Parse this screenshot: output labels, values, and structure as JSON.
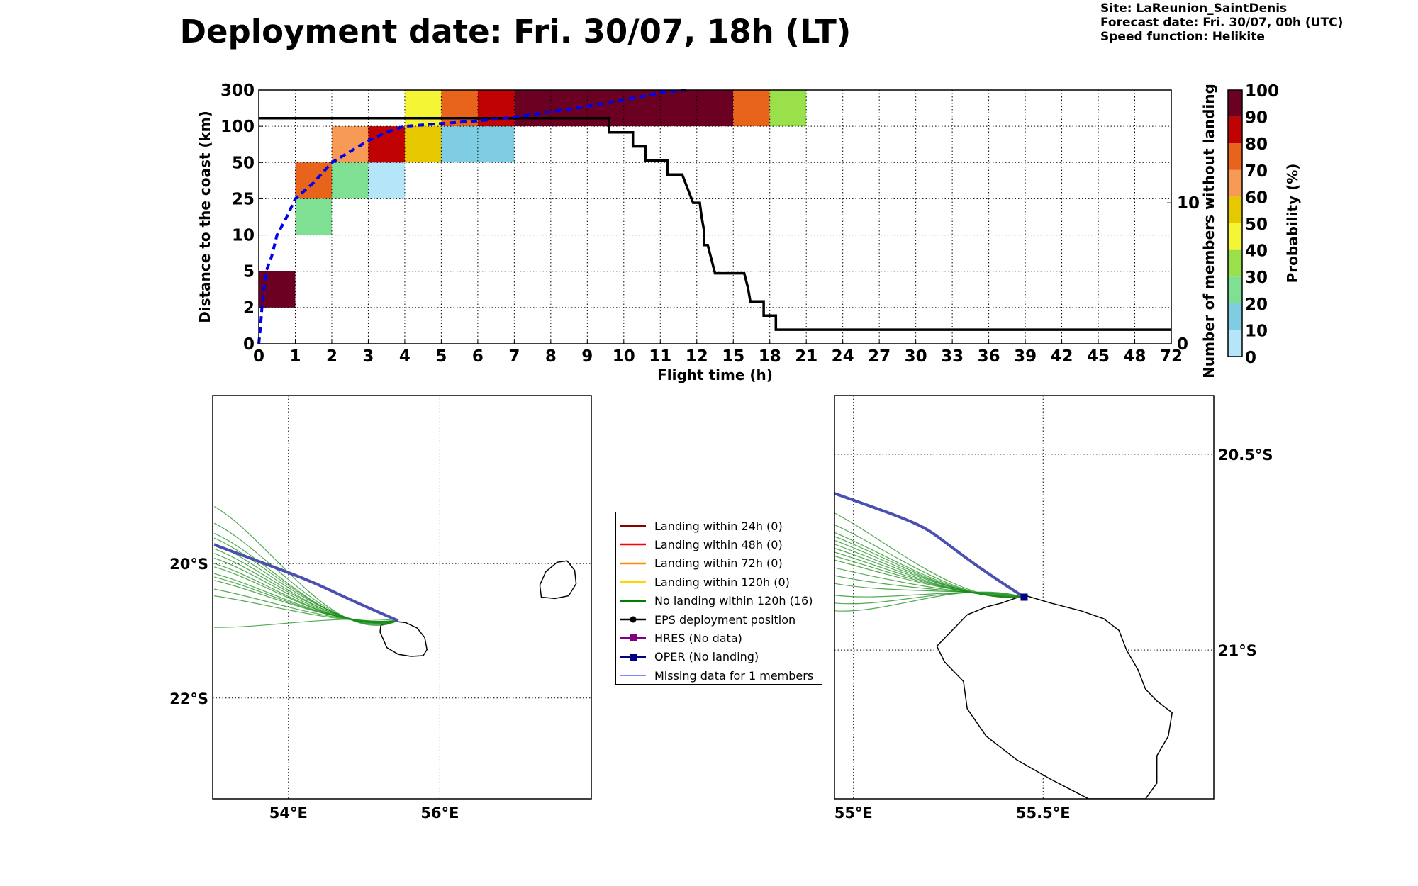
{
  "title": "Deployment date: Fri. 30/07, 18h (LT)",
  "info": {
    "site": "Site: LaReunion_SaintDenis",
    "forecast": "Forecast date: Fri. 30/07, 00h (UTC)",
    "speed": "Speed function: Helikite"
  },
  "chart_data": [
    {
      "type": "heatmap",
      "xlabel": "Flight time (h)",
      "ylabel": "Distance to the coast (km)",
      "ylabel_right": "Number of members without landing",
      "colorbar_label": "Probability (%)",
      "x_ticks": [
        "0",
        "1",
        "2",
        "3",
        "4",
        "5",
        "6",
        "7",
        "8",
        "9",
        "10",
        "11",
        "12",
        "15",
        "18",
        "21",
        "24",
        "27",
        "30",
        "33",
        "36",
        "39",
        "42",
        "45",
        "48",
        "72"
      ],
      "y_ticks": [
        "0",
        "2",
        "5",
        "10",
        "25",
        "50",
        "100",
        "300"
      ],
      "y_ticks_right": [
        "0",
        "10"
      ],
      "colorbar_ticks": [
        "0",
        "10",
        "20",
        "30",
        "40",
        "50",
        "60",
        "70",
        "80",
        "90",
        "100"
      ],
      "colorbar_colors": [
        "#b5e5f8",
        "#7ecde3",
        "#7fe093",
        "#99e04a",
        "#f4f534",
        "#e6c800",
        "#f79a55",
        "#e8641b",
        "#c10202",
        "#6b0022"
      ],
      "cells": [
        {
          "t0": 0,
          "t1": 1,
          "d0": 2,
          "d1": 5,
          "p": 95
        },
        {
          "t0": 1,
          "t1": 2,
          "d0": 10,
          "d1": 25,
          "p": 25
        },
        {
          "t0": 1,
          "t1": 2,
          "d0": 25,
          "d1": 50,
          "p": 75
        },
        {
          "t0": 2,
          "t1": 3,
          "d0": 25,
          "d1": 50,
          "p": 25
        },
        {
          "t0": 2,
          "t1": 3,
          "d0": 50,
          "d1": 100,
          "p": 65
        },
        {
          "t0": 3,
          "t1": 4,
          "d0": 25,
          "d1": 50,
          "p": 5
        },
        {
          "t0": 3,
          "t1": 4,
          "d0": 50,
          "d1": 100,
          "p": 85
        },
        {
          "t0": 4,
          "t1": 5,
          "d0": 50,
          "d1": 100,
          "p": 55
        },
        {
          "t0": 4,
          "t1": 5,
          "d0": 100,
          "d1": 300,
          "p": 45
        },
        {
          "t0": 5,
          "t1": 7,
          "d0": 50,
          "d1": 100,
          "p": 15
        },
        {
          "t0": 5,
          "t1": 6,
          "d0": 100,
          "d1": 300,
          "p": 75
        },
        {
          "t0": 6,
          "t1": 7,
          "d0": 100,
          "d1": 300,
          "p": 85
        },
        {
          "t0": 7,
          "t1": 15,
          "d0": 100,
          "d1": 300,
          "p": 95
        },
        {
          "t0": 15,
          "t1": 18,
          "d0": 100,
          "d1": 300,
          "p": 75
        },
        {
          "t0": 18,
          "t1": 21,
          "d0": 100,
          "d1": 300,
          "p": 35
        }
      ],
      "members_without_landing": [
        {
          "t": 0,
          "n": 16
        },
        {
          "t": 9.6,
          "n": 16
        },
        {
          "t": 9.6,
          "n": 15
        },
        {
          "t": 10.25,
          "n": 15
        },
        {
          "t": 10.25,
          "n": 14
        },
        {
          "t": 10.6,
          "n": 14
        },
        {
          "t": 10.6,
          "n": 13
        },
        {
          "t": 11.2,
          "n": 13
        },
        {
          "t": 11.2,
          "n": 12
        },
        {
          "t": 11.6,
          "n": 12
        },
        {
          "t": 11.9,
          "n": 10
        },
        {
          "t": 12.25,
          "n": 10
        },
        {
          "t": 12.4,
          "n": 9
        },
        {
          "t": 12.6,
          "n": 8
        },
        {
          "t": 12.6,
          "n": 7
        },
        {
          "t": 12.9,
          "n": 7
        },
        {
          "t": 13.2,
          "n": 6
        },
        {
          "t": 13.5,
          "n": 5
        },
        {
          "t": 15.9,
          "n": 5
        },
        {
          "t": 16.2,
          "n": 4
        },
        {
          "t": 16.4,
          "n": 3
        },
        {
          "t": 17.5,
          "n": 3
        },
        {
          "t": 17.5,
          "n": 2
        },
        {
          "t": 18.5,
          "n": 2
        },
        {
          "t": 18.5,
          "n": 1
        },
        {
          "t": 72,
          "n": 1
        }
      ],
      "mean_distance_km": [
        {
          "t": 0,
          "d": 0
        },
        {
          "t": 0.05,
          "d": 1
        },
        {
          "t": 0.1,
          "d": 2.5
        },
        {
          "t": 0.2,
          "d": 5
        },
        {
          "t": 0.35,
          "d": 7
        },
        {
          "t": 0.5,
          "d": 10
        },
        {
          "t": 0.75,
          "d": 17
        },
        {
          "t": 1,
          "d": 25
        },
        {
          "t": 1.5,
          "d": 36
        },
        {
          "t": 2,
          "d": 50
        },
        {
          "t": 2.5,
          "d": 65
        },
        {
          "t": 3,
          "d": 80
        },
        {
          "t": 3.5,
          "d": 92
        },
        {
          "t": 4,
          "d": 100
        },
        {
          "t": 5,
          "d": 115
        },
        {
          "t": 6,
          "d": 130
        },
        {
          "t": 7,
          "d": 150
        },
        {
          "t": 8,
          "d": 180
        },
        {
          "t": 9,
          "d": 210
        },
        {
          "t": 10,
          "d": 245
        },
        {
          "t": 11,
          "d": 285
        },
        {
          "t": 11.7,
          "d": 300
        }
      ]
    }
  ],
  "maps": {
    "left": {
      "lat_labels": [
        "20°S",
        "22°S"
      ],
      "lon_labels": [
        "54°E",
        "56°E"
      ]
    },
    "right": {
      "lat_labels": [
        "20.5°S",
        "21°S"
      ],
      "lon_labels": [
        "55°E",
        "55.5°E"
      ]
    }
  },
  "legend": [
    {
      "label": "Landing within 24h (0)",
      "color": "#8b0000",
      "marker": "none",
      "width": 2.5
    },
    {
      "label": "Landing within 48h (0)",
      "color": "#ff0000",
      "marker": "none",
      "width": 2.5
    },
    {
      "label": "Landing within 72h (0)",
      "color": "#ff8c00",
      "marker": "none",
      "width": 2.5
    },
    {
      "label": "Landing within 120h (0)",
      "color": "#ffd700",
      "marker": "none",
      "width": 2.5
    },
    {
      "label": "No landing within 120h (16)",
      "color": "#008000",
      "marker": "none",
      "width": 2.5
    },
    {
      "label": "EPS deployment position",
      "color": "#000000",
      "marker": "circle",
      "width": 2.5
    },
    {
      "label": "HRES (No data)",
      "color": "#800080",
      "marker": "square",
      "width": 4
    },
    {
      "label": "OPER (No landing)",
      "color": "#000080",
      "marker": "square",
      "width": 4
    },
    {
      "label": "Missing data for 1 members",
      "color": "#4a63ff",
      "marker": "none",
      "width": 1.5
    }
  ],
  "colors": {
    "ensemble_track": "#1a8c1a",
    "oper_track": "#4b4fb0",
    "mean_distance": "#0000ee",
    "members_line": "#000000"
  }
}
